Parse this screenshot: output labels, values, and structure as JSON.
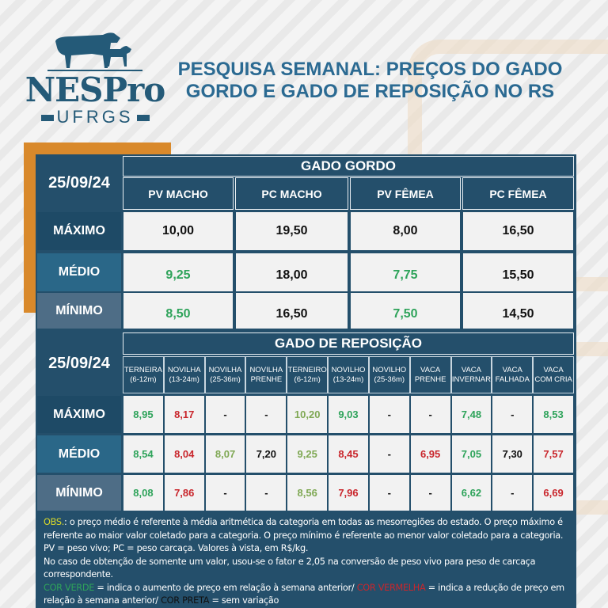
{
  "logo": {
    "brand": "NESPro",
    "university": "UFRGS"
  },
  "title": "PESQUISA SEMANAL: PREÇOS DO GADO GORDO E GADO DE REPOSIÇÃO NO RS",
  "colors": {
    "green": "#2ea35a",
    "lightgreen": "#7fa854",
    "red": "#c9262c",
    "black": "#111111",
    "navy": "#244f6b",
    "orange": "#d9892b"
  },
  "gordo": {
    "date": "25/09/24",
    "heading": "GADO GORDO",
    "columns": [
      "PV MACHO",
      "PC MACHO",
      "PV FÊMEA",
      "PC FÊMEA"
    ],
    "rows": [
      {
        "label": "MÁXIMO",
        "cells": [
          {
            "v": "10,00",
            "c": "black"
          },
          {
            "v": "19,50",
            "c": "black"
          },
          {
            "v": "8,00",
            "c": "black"
          },
          {
            "v": "16,50",
            "c": "black"
          }
        ]
      },
      {
        "label": "MÉDIO",
        "cells": [
          {
            "v": "9,25",
            "c": "green"
          },
          {
            "v": "18,00",
            "c": "black"
          },
          {
            "v": "7,75",
            "c": "green"
          },
          {
            "v": "15,50",
            "c": "black"
          }
        ]
      },
      {
        "label": "MÍNIMO",
        "cells": [
          {
            "v": "8,50",
            "c": "green"
          },
          {
            "v": "16,50",
            "c": "black"
          },
          {
            "v": "7,50",
            "c": "green"
          },
          {
            "v": "14,50",
            "c": "black"
          }
        ]
      }
    ]
  },
  "reposicao": {
    "date": "25/09/24",
    "heading": "GADO DE REPOSIÇÃO",
    "columns": [
      [
        "TERNEIRA",
        "(6-12m)"
      ],
      [
        "NOVILHA",
        "(13-24m)"
      ],
      [
        "NOVILHA",
        "(25-36m)"
      ],
      [
        "NOVILHA",
        "PRENHE"
      ],
      [
        "TERNEIRO",
        "(6-12m)"
      ],
      [
        "NOVILHO",
        "(13-24m)"
      ],
      [
        "NOVILHO",
        "(25-36m)"
      ],
      [
        "VACA",
        "PRENHE"
      ],
      [
        "VACA",
        "INVERNAR"
      ],
      [
        "VACA",
        "FALHADA"
      ],
      [
        "VACA",
        "COM CRIA"
      ]
    ],
    "rows": [
      {
        "label": "MÁXIMO",
        "cells": [
          {
            "v": "8,95",
            "c": "green"
          },
          {
            "v": "8,17",
            "c": "red"
          },
          {
            "v": "-",
            "c": "black"
          },
          {
            "v": "-",
            "c": "black"
          },
          {
            "v": "10,20",
            "c": "lightgreen"
          },
          {
            "v": "9,03",
            "c": "green"
          },
          {
            "v": "-",
            "c": "black"
          },
          {
            "v": "-",
            "c": "black"
          },
          {
            "v": "7,48",
            "c": "green"
          },
          {
            "v": "-",
            "c": "black"
          },
          {
            "v": "8,53",
            "c": "green"
          }
        ]
      },
      {
        "label": "MÉDIO",
        "cells": [
          {
            "v": "8,54",
            "c": "green"
          },
          {
            "v": "8,04",
            "c": "red"
          },
          {
            "v": "8,07",
            "c": "lightgreen"
          },
          {
            "v": "7,20",
            "c": "black"
          },
          {
            "v": "9,25",
            "c": "lightgreen"
          },
          {
            "v": "8,45",
            "c": "red"
          },
          {
            "v": "-",
            "c": "black"
          },
          {
            "v": "6,95",
            "c": "red"
          },
          {
            "v": "7,05",
            "c": "green"
          },
          {
            "v": "7,30",
            "c": "black"
          },
          {
            "v": "7,57",
            "c": "red"
          }
        ]
      },
      {
        "label": "MÍNIMO",
        "cells": [
          {
            "v": "8,08",
            "c": "green"
          },
          {
            "v": "7,86",
            "c": "red"
          },
          {
            "v": "-",
            "c": "black"
          },
          {
            "v": "-",
            "c": "black"
          },
          {
            "v": "8,56",
            "c": "lightgreen"
          },
          {
            "v": "7,96",
            "c": "red"
          },
          {
            "v": "-",
            "c": "black"
          },
          {
            "v": "-",
            "c": "black"
          },
          {
            "v": "6,62",
            "c": "green"
          },
          {
            "v": "-",
            "c": "black"
          },
          {
            "v": "6,69",
            "c": "red"
          }
        ]
      }
    ]
  },
  "obs": {
    "label": "OBS.",
    "text1": ": o preço médio é referente à média aritmética da categoria em todas as mesorregiões do estado. O preço máximo é referente ao maior valor coletado para a categoria. O preço mínimo é referente ao menor valor coletado para a categoria.",
    "text2": "PV = peso vivo; PC = peso carcaça. Valores à vista, em R$/kg.",
    "text3": "No caso de obtenção de somente um valor, usou-se o fator e 2,05 na conversão de peso vivo para peso de carcaça correspondente.",
    "green_label": "COR VERDE",
    "green_text": " = indica o aumento de preço em relação à semana anterior/ ",
    "red_label": "COR VERMELHA",
    "red_text": " = indica a redução de preço em relação à semana anterior/ ",
    "black_label": "COR PRETA",
    "black_text": " = sem variação"
  }
}
